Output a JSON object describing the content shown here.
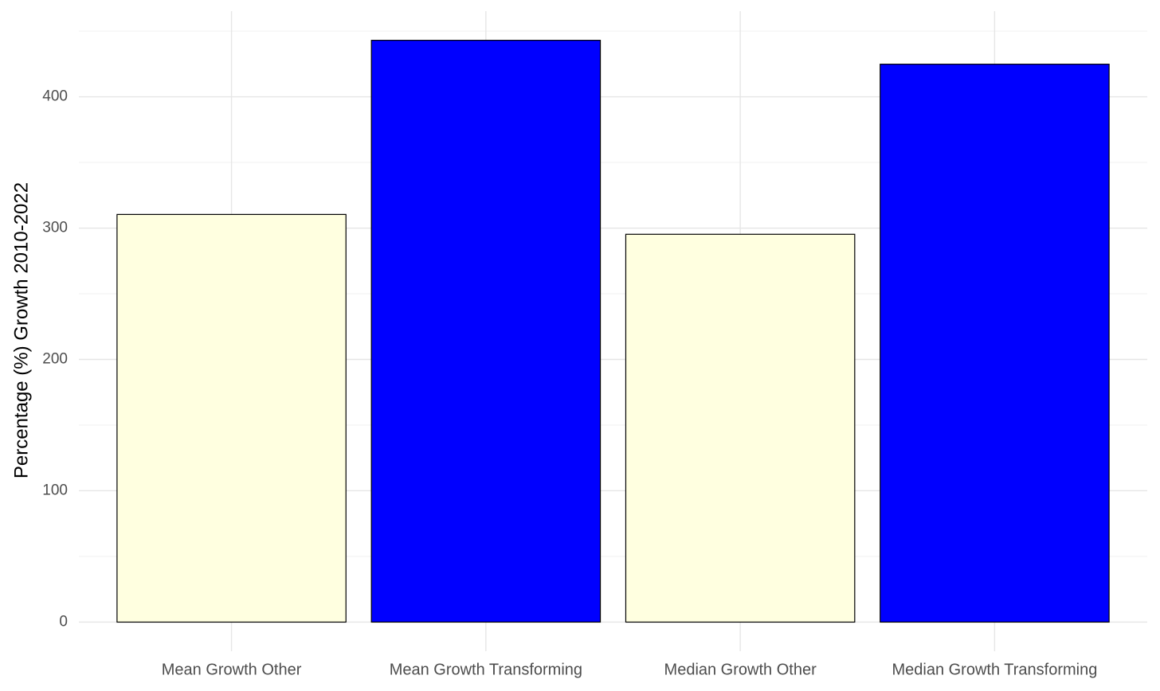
{
  "chart_data": {
    "type": "bar",
    "y_label": "Percentage (%) Growth 2010-2022",
    "categories": [
      "Mean Growth Other",
      "Mean Growth Transforming",
      "Median Growth Other",
      "Median Growth Transforming"
    ],
    "values": [
      310.4,
      443,
      295.3,
      424.8
    ],
    "colors": [
      "#ffffe0",
      "#0000ff",
      "#ffffe0",
      "#0000ff"
    ],
    "ylim": [
      -22.15,
      465.2
    ],
    "yticks": [
      0,
      100,
      200,
      300,
      400
    ],
    "minor_yticks": [
      50,
      150,
      250,
      350,
      450
    ],
    "grid": true
  }
}
